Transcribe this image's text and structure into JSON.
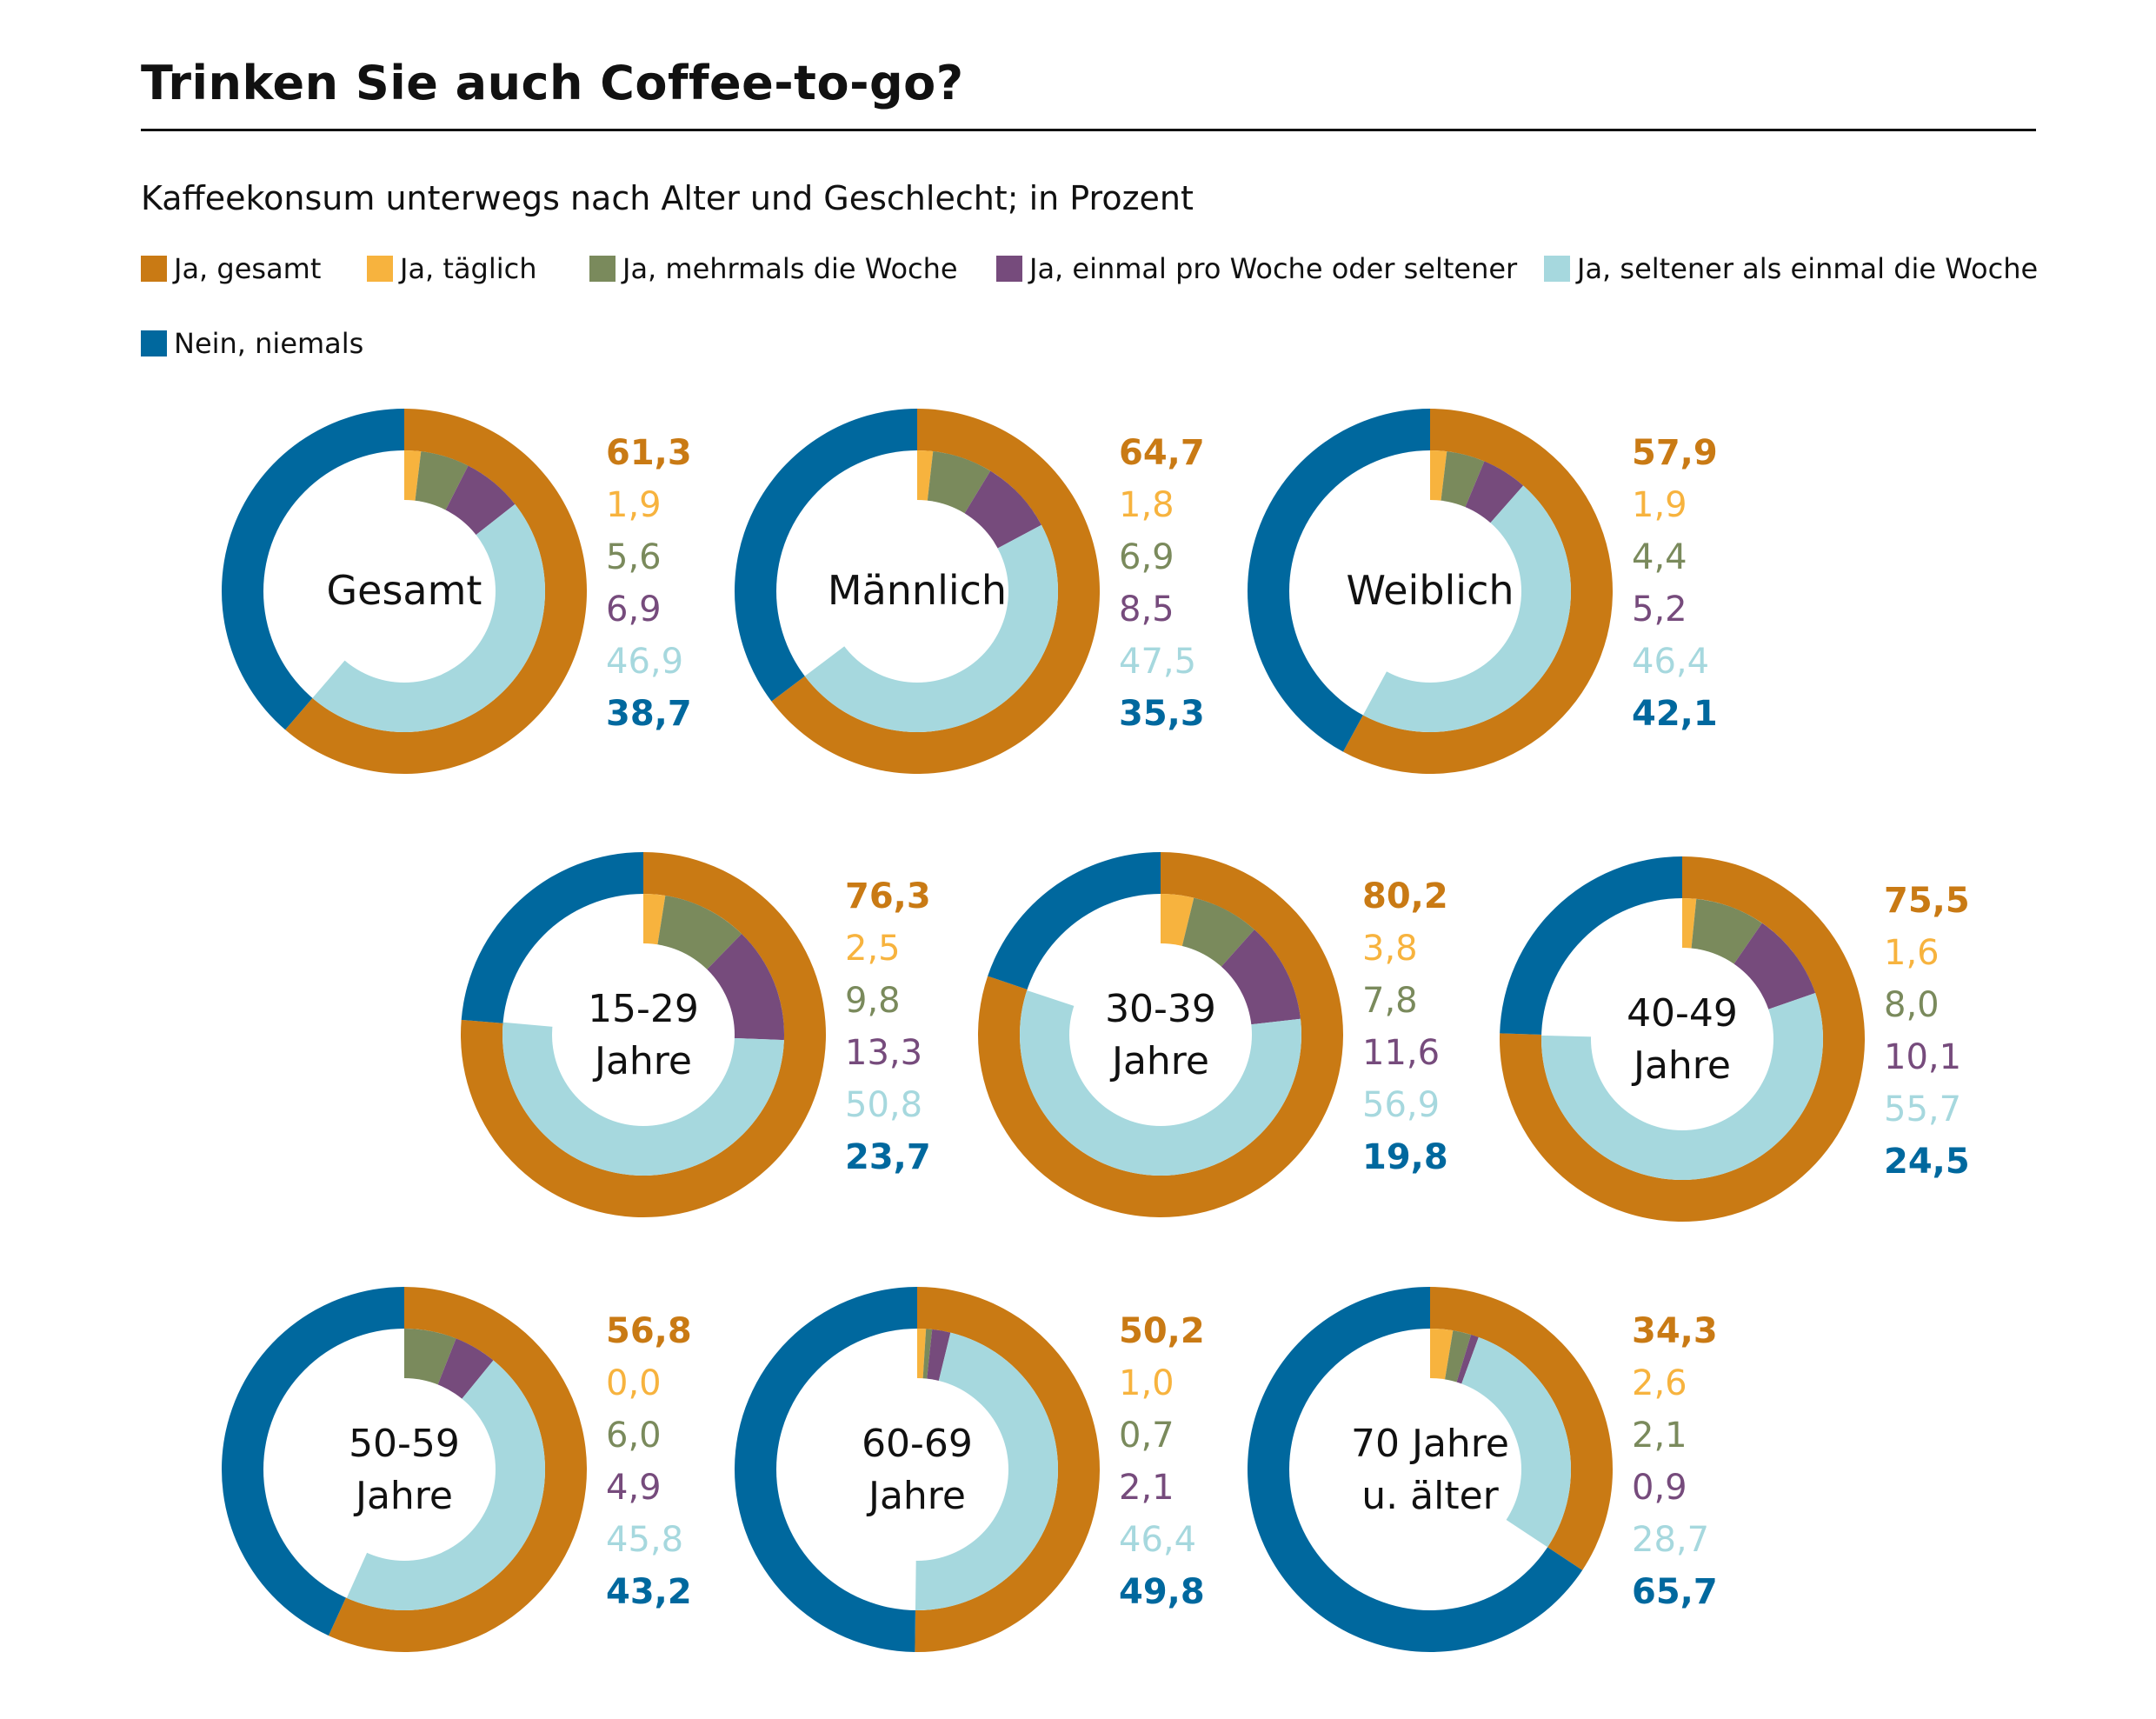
{
  "title": "Trinken Sie auch Coffee-to-go?",
  "subtitle": "Kaffeekonsum unterwegs nach Alter und Geschlecht; in Prozent",
  "colors": {
    "gesamt": "#C97A14",
    "taeglich": "#F7B33E",
    "mehrmals": "#7A8A5C",
    "einmal": "#764B7C",
    "seltener": "#A6D8DE",
    "nein": "#00689E"
  },
  "legend": [
    {
      "key": "gesamt",
      "label": "Ja, gesamt"
    },
    {
      "key": "taeglich",
      "label": "Ja, täglich"
    },
    {
      "key": "mehrmals",
      "label": "Ja, mehrmals die Woche"
    },
    {
      "key": "einmal",
      "label": "Ja, einmal pro Woche oder seltener"
    },
    {
      "key": "seltener",
      "label": "Ja, seltener als einmal die Woche"
    },
    {
      "key": "nein",
      "label": "Nein, niemals"
    }
  ],
  "chart_data": {
    "type": "pie",
    "variant": "double-ring donut",
    "series_keys": [
      "gesamt",
      "taeglich",
      "mehrmals",
      "einmal",
      "seltener",
      "nein"
    ],
    "value_labels": [
      "61,3",
      "1,9",
      "5,6",
      "6,9",
      "46,9",
      "38,7",
      "64,7",
      "1,8",
      "6,9",
      "8,5",
      "47,5",
      "35,3",
      "57,9",
      "1,9",
      "4,4",
      "5,2",
      "46,4",
      "42,1",
      "76,3",
      "2,5",
      "9,8",
      "13,3",
      "50,8",
      "23,7",
      "80,2",
      "3,8",
      "7,8",
      "11,6",
      "56,9",
      "19,8",
      "75,5",
      "1,6",
      "8,0",
      "10,1",
      "55,7",
      "24,5",
      "56,8",
      "0,0",
      "6,0",
      "4,9",
      "45,8",
      "43,2",
      "50,2",
      "1,0",
      "0,7",
      "2,1",
      "46,4",
      "49,8",
      "34,3",
      "2,6",
      "2,1",
      "0,9",
      "28,7",
      "65,7"
    ],
    "groups": [
      {
        "label": [
          "Gesamt"
        ],
        "ja_gesamt": 61.3,
        "taeglich": 1.9,
        "mehrmals": 5.6,
        "einmal": 6.9,
        "seltener": 46.9,
        "nein": 38.7
      },
      {
        "label": [
          "Männlich"
        ],
        "ja_gesamt": 64.7,
        "taeglich": 1.8,
        "mehrmals": 6.9,
        "einmal": 8.5,
        "seltener": 47.5,
        "nein": 35.3
      },
      {
        "label": [
          "Weiblich"
        ],
        "ja_gesamt": 57.9,
        "taeglich": 1.9,
        "mehrmals": 4.4,
        "einmal": 5.2,
        "seltener": 46.4,
        "nein": 42.1
      },
      {
        "label": [
          "15-29",
          "Jahre"
        ],
        "ja_gesamt": 76.3,
        "taeglich": 2.5,
        "mehrmals": 9.8,
        "einmal": 13.3,
        "seltener": 50.8,
        "nein": 23.7
      },
      {
        "label": [
          "30-39",
          "Jahre"
        ],
        "ja_gesamt": 80.2,
        "taeglich": 3.8,
        "mehrmals": 7.8,
        "einmal": 11.6,
        "seltener": 56.9,
        "nein": 19.8
      },
      {
        "label": [
          "40-49",
          "Jahre"
        ],
        "ja_gesamt": 75.5,
        "taeglich": 1.6,
        "mehrmals": 8.0,
        "einmal": 10.1,
        "seltener": 55.7,
        "nein": 24.5
      },
      {
        "label": [
          "50-59",
          "Jahre"
        ],
        "ja_gesamt": 56.8,
        "taeglich": 0.0,
        "mehrmals": 6.0,
        "einmal": 4.9,
        "seltener": 45.8,
        "nein": 43.2
      },
      {
        "label": [
          "60-69",
          "Jahre"
        ],
        "ja_gesamt": 50.2,
        "taeglich": 1.0,
        "mehrmals": 0.7,
        "einmal": 2.1,
        "seltener": 46.4,
        "nein": 49.8
      },
      {
        "label": [
          "70 Jahre",
          "u. älter"
        ],
        "ja_gesamt": 34.3,
        "taeglich": 2.6,
        "mehrmals": 2.1,
        "einmal": 0.9,
        "seltener": 28.7,
        "nein": 65.7
      }
    ]
  }
}
